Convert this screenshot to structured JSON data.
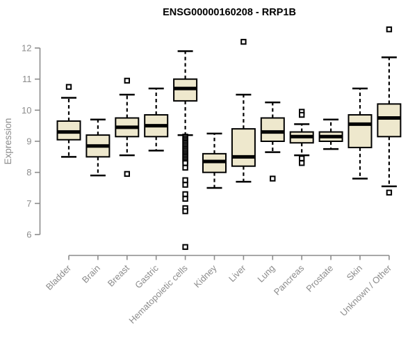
{
  "chart_data": {
    "type": "boxplot",
    "title": "ENSG00000160208 - RRP1B",
    "ylabel": "Expression",
    "xlabel": "",
    "ylim": [
      6,
      12
    ],
    "yticks": [
      6,
      7,
      8,
      9,
      10,
      11,
      12
    ],
    "grid": false,
    "legend": "none",
    "categories": [
      "Bladder",
      "Brain",
      "Breast",
      "Gastric",
      "Hematopoietic cells",
      "Kidney",
      "Liver",
      "Lung",
      "Pancreas",
      "Prostate",
      "Skin",
      "Unknown / Other"
    ],
    "series": [
      {
        "name": "Bladder",
        "whislo": 8.5,
        "q1": 9.05,
        "med": 9.3,
        "q3": 9.65,
        "whishi": 10.4,
        "outliers": [
          10.75
        ]
      },
      {
        "name": "Brain",
        "whislo": 7.9,
        "q1": 8.5,
        "med": 8.85,
        "q3": 9.2,
        "whishi": 9.7,
        "outliers": []
      },
      {
        "name": "Breast",
        "whislo": 8.55,
        "q1": 9.15,
        "med": 9.45,
        "q3": 9.75,
        "whishi": 10.5,
        "outliers": [
          10.95,
          7.95
        ]
      },
      {
        "name": "Gastric",
        "whislo": 8.7,
        "q1": 9.15,
        "med": 9.5,
        "q3": 9.85,
        "whishi": 10.7,
        "outliers": []
      },
      {
        "name": "Hematopoietic cells",
        "whislo": 9.2,
        "q1": 10.3,
        "med": 10.7,
        "q3": 11.0,
        "whishi": 11.9,
        "outliers": [
          9.15,
          9.1,
          9.05,
          9.0,
          8.95,
          8.9,
          8.85,
          8.8,
          8.75,
          8.7,
          8.65,
          8.6,
          8.55,
          8.5,
          8.45,
          8.4,
          8.35,
          8.3,
          8.15,
          7.75,
          7.6,
          7.3,
          7.15,
          6.85,
          6.75,
          5.6
        ]
      },
      {
        "name": "Kidney",
        "whislo": 7.5,
        "q1": 8.0,
        "med": 8.35,
        "q3": 8.6,
        "whishi": 9.25,
        "outliers": []
      },
      {
        "name": "Liver",
        "whislo": 7.7,
        "q1": 8.2,
        "med": 8.5,
        "q3": 9.4,
        "whishi": 10.5,
        "outliers": [
          12.2
        ]
      },
      {
        "name": "Lung",
        "whislo": 8.65,
        "q1": 9.0,
        "med": 9.3,
        "q3": 9.75,
        "whishi": 10.25,
        "outliers": [
          7.8
        ]
      },
      {
        "name": "Pancreas",
        "whislo": 8.55,
        "q1": 8.95,
        "med": 9.15,
        "q3": 9.3,
        "whishi": 9.55,
        "outliers": [
          9.95,
          9.85,
          8.45,
          8.3
        ]
      },
      {
        "name": "Prostate",
        "whislo": 8.75,
        "q1": 9.0,
        "med": 9.15,
        "q3": 9.3,
        "whishi": 9.7,
        "outliers": []
      },
      {
        "name": "Skin",
        "whislo": 7.8,
        "q1": 8.8,
        "med": 9.55,
        "q3": 9.85,
        "whishi": 10.7,
        "outliers": []
      },
      {
        "name": "Unknown / Other",
        "whislo": 7.55,
        "q1": 9.15,
        "med": 9.75,
        "q3": 10.2,
        "whishi": 11.7,
        "outliers": [
          12.6,
          7.35
        ]
      }
    ],
    "colors": {
      "box_fill": "#EEE8CD",
      "box_stroke": "#000000",
      "median": "#000000",
      "whisker": "#000000",
      "outlier_stroke": "#000000",
      "outlier_fill": "#FFFFFF",
      "axis": "#8C8C8C",
      "tick_label": "#8C8C8C",
      "title": "#000000",
      "background": "#FFFFFF"
    }
  }
}
